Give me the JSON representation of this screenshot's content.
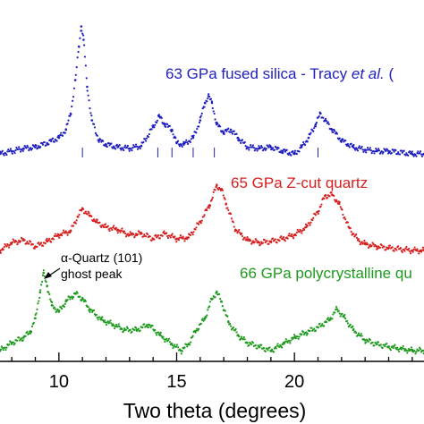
{
  "chart_data": {
    "type": "line",
    "xlabel": "Two theta (degrees)",
    "ylabel": "",
    "xlim": [
      7.5,
      25.5
    ],
    "x_ticks": [
      10,
      15,
      20
    ],
    "x_tick_labels": [
      "10",
      "15",
      "20"
    ],
    "y_ticks_shown": false,
    "grid": false,
    "series": [
      {
        "name": "63 GPa fused silica - Tracy et al. (",
        "label_parts": [
          "63 GPa fused silica - Tracy ",
          "et al.",
          " ("
        ],
        "color": "#1f1fbf",
        "x": [
          7.5,
          8.0,
          8.5,
          9.0,
          9.5,
          10.0,
          10.3,
          10.5,
          10.7,
          10.85,
          10.95,
          11.05,
          11.2,
          11.4,
          11.7,
          12.0,
          12.5,
          13.0,
          13.5,
          14.0,
          14.25,
          14.5,
          14.8,
          15.0,
          15.3,
          15.7,
          16.0,
          16.2,
          16.35,
          16.5,
          16.7,
          17.0,
          17.3,
          17.6,
          18.0,
          18.5,
          19.0,
          19.5,
          20.0,
          20.3,
          20.6,
          20.9,
          21.1,
          21.3,
          21.6,
          22.0,
          22.5,
          23.0,
          23.5,
          24.0,
          25.0,
          25.5
        ],
        "values": [
          0.0,
          0.02,
          0.04,
          0.05,
          0.08,
          0.12,
          0.18,
          0.3,
          0.55,
          0.8,
          0.95,
          0.85,
          0.5,
          0.25,
          0.1,
          0.07,
          0.05,
          0.04,
          0.06,
          0.2,
          0.28,
          0.22,
          0.18,
          0.08,
          0.07,
          0.12,
          0.25,
          0.38,
          0.43,
          0.38,
          0.22,
          0.16,
          0.18,
          0.12,
          0.05,
          0.04,
          0.05,
          0.02,
          0.0,
          0.05,
          0.12,
          0.22,
          0.3,
          0.25,
          0.18,
          0.1,
          0.05,
          0.03,
          0.02,
          0.02,
          0.0,
          0.0
        ],
        "tick_marks_x": [
          11.0,
          14.2,
          14.8,
          15.7,
          16.6,
          21.0
        ]
      },
      {
        "name": "65 GPa Z-cut quartz",
        "color": "#d62020",
        "x": [
          7.5,
          8.0,
          8.5,
          9.0,
          9.5,
          10.0,
          10.5,
          10.8,
          11.0,
          11.3,
          11.6,
          12.0,
          12.5,
          13.0,
          13.5,
          14.0,
          14.5,
          15.0,
          15.5,
          16.0,
          16.4,
          16.7,
          16.9,
          17.1,
          17.5,
          18.0,
          18.5,
          19.0,
          19.5,
          20.0,
          20.5,
          21.0,
          21.3,
          21.6,
          21.9,
          22.3,
          22.7,
          23.0,
          23.5,
          24.0,
          25.0,
          25.5
        ],
        "values": [
          0.0,
          0.06,
          0.08,
          0.03,
          0.07,
          0.12,
          0.15,
          0.26,
          0.32,
          0.27,
          0.22,
          0.18,
          0.16,
          0.12,
          0.13,
          0.09,
          0.13,
          0.09,
          0.1,
          0.22,
          0.35,
          0.5,
          0.47,
          0.36,
          0.16,
          0.08,
          0.06,
          0.07,
          0.09,
          0.12,
          0.18,
          0.3,
          0.42,
          0.43,
          0.36,
          0.18,
          0.08,
          0.05,
          0.03,
          0.02,
          0.0,
          0.0
        ]
      },
      {
        "name": "66 GPa polycrystalline qu",
        "color": "#1e9a1e",
        "x": [
          7.5,
          8.0,
          8.5,
          8.8,
          9.0,
          9.2,
          9.35,
          9.5,
          9.7,
          10.0,
          10.3,
          10.7,
          11.0,
          11.3,
          11.8,
          12.3,
          12.8,
          13.3,
          13.8,
          14.3,
          14.8,
          15.2,
          15.5,
          15.8,
          16.2,
          16.5,
          16.7,
          16.9,
          17.2,
          17.6,
          18.0,
          18.5,
          19.0,
          19.5,
          20.0,
          20.5,
          21.0,
          21.5,
          21.8,
          22.1,
          22.5,
          23.0,
          23.5,
          24.0,
          25.0,
          25.5
        ],
        "values": [
          0.0,
          0.06,
          0.1,
          0.15,
          0.25,
          0.45,
          0.6,
          0.5,
          0.35,
          0.3,
          0.38,
          0.44,
          0.4,
          0.32,
          0.24,
          0.2,
          0.16,
          0.16,
          0.2,
          0.12,
          0.05,
          0.0,
          0.05,
          0.15,
          0.25,
          0.4,
          0.45,
          0.38,
          0.22,
          0.12,
          0.06,
          0.03,
          0.0,
          0.05,
          0.1,
          0.14,
          0.18,
          0.24,
          0.32,
          0.26,
          0.16,
          0.08,
          0.05,
          0.03,
          0.0,
          0.0
        ]
      }
    ],
    "annotations": [
      {
        "text": "α-Quartz (101)",
        "target_x": 9.35,
        "series_index": 2
      },
      {
        "text": "ghost peak",
        "target_x": 9.35,
        "series_index": 2
      }
    ]
  }
}
